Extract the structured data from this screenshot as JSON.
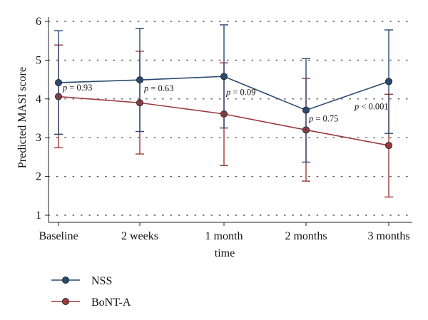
{
  "chart_data": {
    "type": "line",
    "title": "",
    "xlabel": "time",
    "ylabel": "Predicted MASI score",
    "categories": [
      "Baseline",
      "2 weeks",
      "1 month",
      "2 months",
      "3 months"
    ],
    "ylim": [
      1,
      6
    ],
    "yticks": [
      "1",
      "2",
      "3",
      "4",
      "5",
      "6"
    ],
    "grid": "horizontal dotted",
    "legend_position": "bottom-left",
    "series": [
      {
        "name": "NSS",
        "color": "#2b4a6f",
        "values": [
          4.42,
          4.49,
          4.58,
          3.71,
          4.45
        ],
        "ci_lower": [
          3.09,
          3.16,
          3.25,
          2.37,
          3.11
        ],
        "ci_upper": [
          5.76,
          5.82,
          5.91,
          5.04,
          5.78
        ]
      },
      {
        "name": "BoNT-A",
        "color": "#9b3a3c",
        "values": [
          4.06,
          3.9,
          3.61,
          3.2,
          2.8
        ],
        "ci_lower": [
          2.74,
          2.58,
          2.28,
          1.88,
          1.47
        ],
        "ci_upper": [
          5.39,
          5.23,
          4.93,
          4.53,
          4.12
        ]
      }
    ],
    "annotations": [
      {
        "p": "p",
        "rest": " = 0.93",
        "x_index": 0,
        "y": 4.22
      },
      {
        "p": "p",
        "rest": " = 0.63",
        "x_index": 1,
        "y": 4.2
      },
      {
        "p": "p",
        "rest": " = 0.09",
        "x_index": 2,
        "y": 4.1
      },
      {
        "p": "p",
        "rest": " = 0.75",
        "x_index": 3,
        "y": 3.42
      },
      {
        "p": "p",
        "rest": " < 0.001",
        "x_index": 4,
        "y": 3.73
      }
    ]
  }
}
